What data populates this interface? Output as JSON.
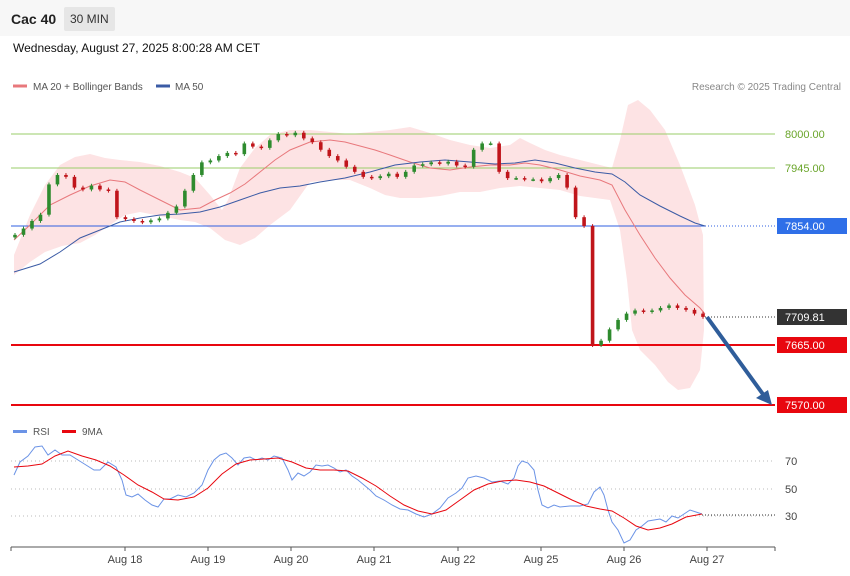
{
  "header": {
    "instrument": "Cac 40",
    "timeframe": "30 MIN",
    "datetime": "Wednesday, August 27, 2025 8:00:28 AM CET"
  },
  "legend": {
    "ma20": "MA 20 + Bollinger Bands",
    "ma50": "MA 50",
    "source": "Research © 2025 Trading Central"
  },
  "rsi_legend": {
    "rsi": "RSI",
    "ma": "9MA"
  },
  "colors": {
    "bull": "#2e8b2e",
    "bear": "#c0151b",
    "ma20": "#e8787c",
    "ma50": "#3b5ba5",
    "bollinger_fill": "#fde3e4",
    "resistance": "#9acd6a",
    "pivot": "#2f5fe0",
    "support": "#e8070f",
    "current": "#333333",
    "arrow": "#2f5d9a",
    "rsi": "#6b93e6",
    "rsi_ma": "#e8070f"
  },
  "chart_data": [
    {
      "type": "candlestick",
      "title": "",
      "x_labels": [
        "Aug 18",
        "Aug 19",
        "Aug 20",
        "Aug 21",
        "Aug 22",
        "Aug 25",
        "Aug 26",
        "Aug 27"
      ],
      "ylim": [
        7560,
        8030
      ],
      "levels": [
        {
          "value": 8000.0,
          "label": "8000.00",
          "kind": "resistance"
        },
        {
          "value": 7945.0,
          "label": "7945.00",
          "kind": "resistance"
        },
        {
          "value": 7854.0,
          "label": "7854.00",
          "kind": "pivot"
        },
        {
          "value": 7709.81,
          "label": "7709.81",
          "kind": "current"
        },
        {
          "value": 7665.0,
          "label": "7665.00",
          "kind": "support"
        },
        {
          "value": 7570.0,
          "label": "7570.00",
          "kind": "support"
        }
      ],
      "close_series": [
        7840,
        7850,
        7862,
        7872,
        7920,
        7935,
        7932,
        7915,
        7912,
        7918,
        7912,
        7910,
        7868,
        7865,
        7862,
        7860,
        7863,
        7866,
        7875,
        7885,
        7910,
        7935,
        7955,
        7958,
        7965,
        7970,
        7968,
        7985,
        7980,
        7978,
        7990,
        8000,
        7998,
        8002,
        7993,
        7987,
        7975,
        7965,
        7958,
        7948,
        7940,
        7932,
        7930,
        7933,
        7937,
        7932,
        7940,
        7950,
        7952,
        7955,
        7953,
        7956,
        7950,
        7948,
        7975,
        7985,
        7985,
        7940,
        7930,
        7930,
        7928,
        7928,
        7925,
        7930,
        7935,
        7915,
        7868,
        7854,
        7665,
        7672,
        7690,
        7705,
        7715,
        7720,
        7718,
        7720,
        7724,
        7728,
        7724,
        7721,
        7715,
        7709.81
      ],
      "ma20_last": 7735,
      "ma50_last": 7854
    },
    {
      "type": "line",
      "title": "",
      "series_names": [
        "RSI",
        "9MA"
      ],
      "yticks": [
        70,
        50,
        30
      ],
      "x_labels": [
        "Aug 18",
        "Aug 19",
        "Aug 20",
        "Aug 21",
        "Aug 22",
        "Aug 25",
        "Aug 26",
        "Aug 27"
      ],
      "rsi_last": 32,
      "rsi_ma_last": 31
    }
  ]
}
